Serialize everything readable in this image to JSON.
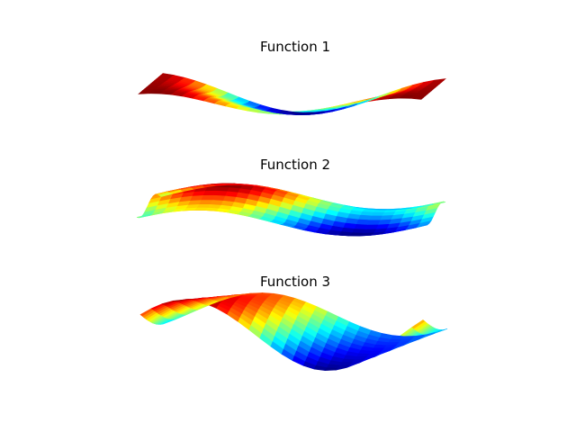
{
  "chart_data": [
    {
      "type": "surface",
      "title": "Function 1",
      "colormap": "jet",
      "axes_visible": false,
      "surface": "two raised humps on the left and right edges with a depression in the center"
    },
    {
      "type": "surface",
      "title": "Function 2",
      "colormap": "jet",
      "axes_visible": false,
      "surface": "saddle-like sheet: high ridge toward the back center, low trough toward the front right"
    },
    {
      "type": "surface",
      "title": "Function 3",
      "colormap": "jet",
      "axes_visible": false,
      "surface": "strongly oscillating wave with two peaks and two valleys across the width"
    }
  ]
}
